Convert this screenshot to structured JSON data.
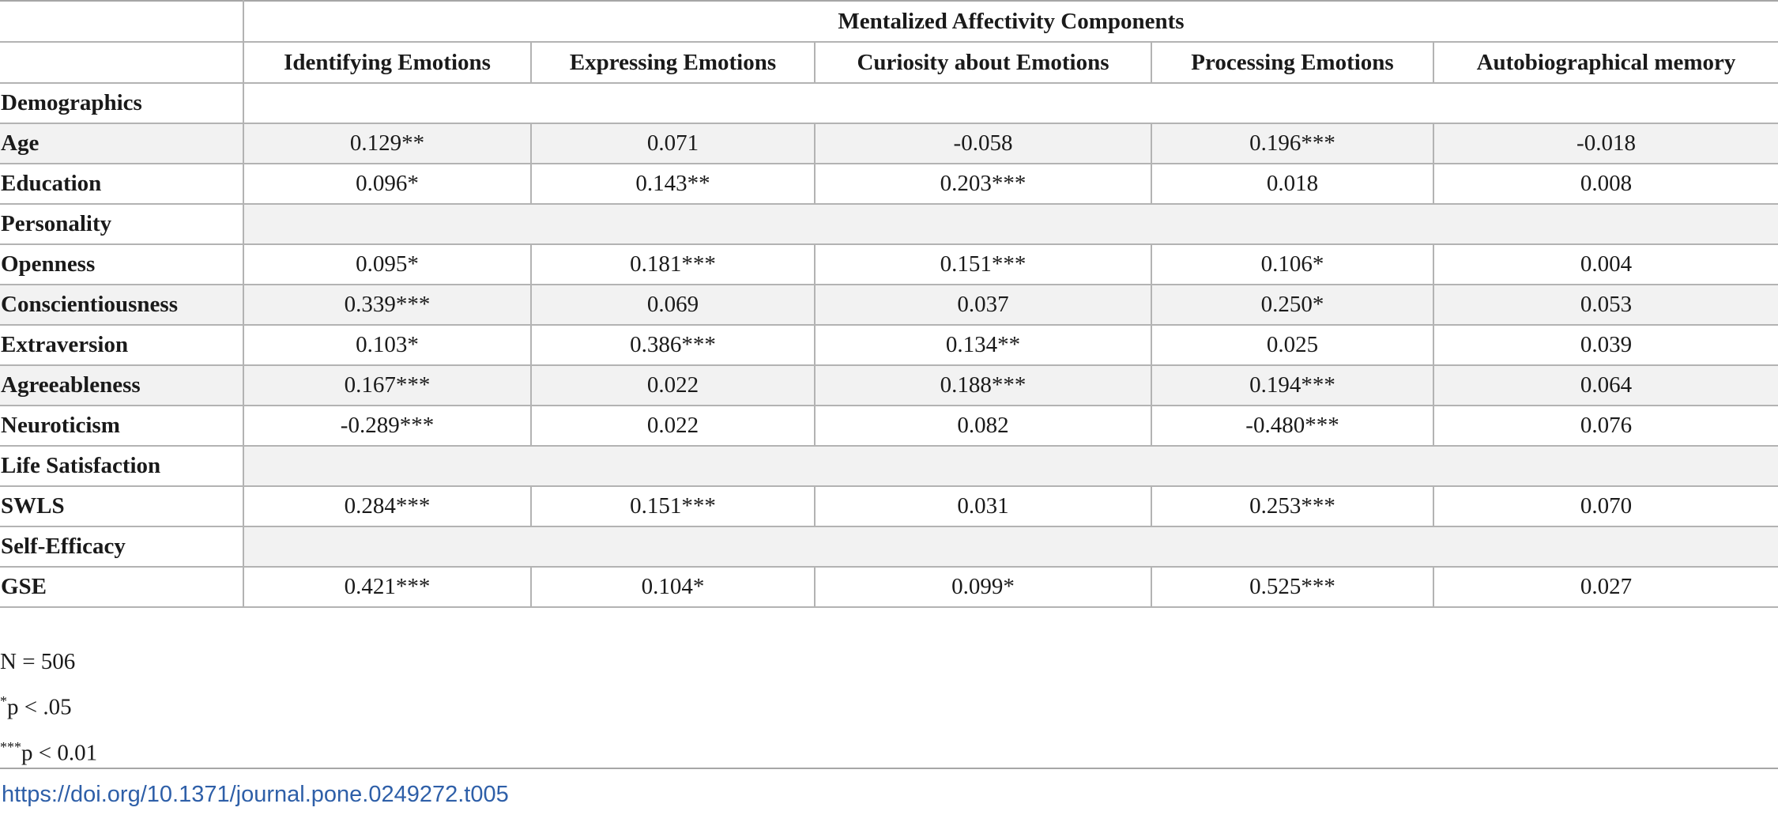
{
  "table": {
    "group_header": "Mentalized Affectivity Components",
    "columns": [
      "Identifying Emotions",
      "Expressing Emotions",
      "Curiosity about Emotions",
      "Processing Emotions",
      "Autobiographical memory"
    ],
    "rows": [
      {
        "type": "section",
        "label": "Demographics",
        "shaded": false
      },
      {
        "type": "data",
        "label": "Age",
        "shaded": true,
        "values": [
          "0.129**",
          "0.071",
          "-0.058",
          "0.196***",
          "-0.018"
        ]
      },
      {
        "type": "data",
        "label": "Education",
        "shaded": false,
        "values": [
          "0.096*",
          "0.143**",
          "0.203***",
          "0.018",
          "0.008"
        ]
      },
      {
        "type": "section",
        "label": "Personality",
        "shaded": true
      },
      {
        "type": "data",
        "label": "Openness",
        "shaded": false,
        "values": [
          "0.095*",
          "0.181***",
          "0.151***",
          "0.106*",
          "0.004"
        ]
      },
      {
        "type": "data",
        "label": "Conscientiousness",
        "shaded": true,
        "values": [
          "0.339***",
          "0.069",
          "0.037",
          "0.250*",
          "0.053"
        ]
      },
      {
        "type": "data",
        "label": "Extraversion",
        "shaded": false,
        "values": [
          "0.103*",
          "0.386***",
          "0.134**",
          "0.025",
          "0.039"
        ]
      },
      {
        "type": "data",
        "label": "Agreeableness",
        "shaded": true,
        "values": [
          "0.167***",
          "0.022",
          "0.188***",
          "0.194***",
          "0.064"
        ]
      },
      {
        "type": "data",
        "label": "Neuroticism",
        "shaded": false,
        "values": [
          "-0.289***",
          "0.022",
          "0.082",
          "-0.480***",
          "0.076"
        ]
      },
      {
        "type": "section",
        "label": "Life Satisfaction",
        "shaded": true
      },
      {
        "type": "data",
        "label": "SWLS",
        "shaded": false,
        "values": [
          "0.284***",
          "0.151***",
          "0.031",
          "0.253***",
          "0.070"
        ]
      },
      {
        "type": "section",
        "label": "Self-Efficacy",
        "shaded": true
      },
      {
        "type": "data",
        "label": "GSE",
        "shaded": false,
        "values": [
          "0.421***",
          "0.104*",
          "0.099*",
          "0.525***",
          "0.027"
        ]
      }
    ]
  },
  "notes": {
    "n": "N = 506",
    "note1_mark": "*",
    "note1_text": "p < .05",
    "note2_mark": "***",
    "note2_text": "p < 0.01"
  },
  "doi": "https://doi.org/10.1371/journal.pone.0249272.t005"
}
